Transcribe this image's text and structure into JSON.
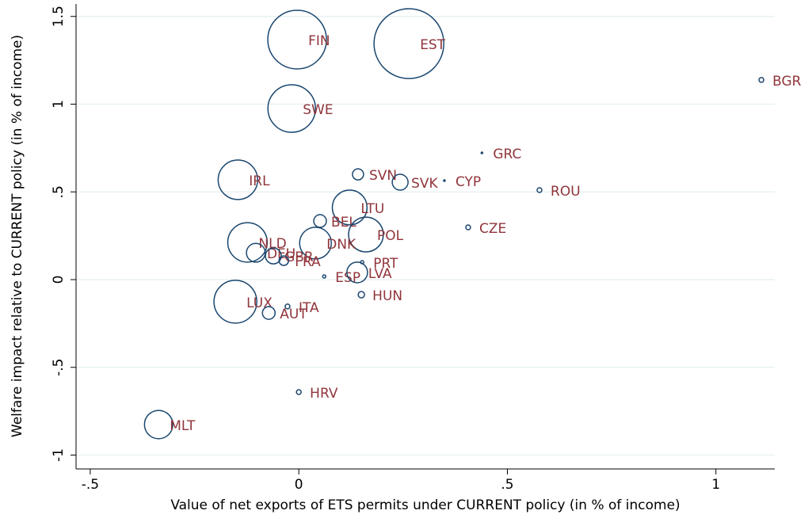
{
  "chart_data": {
    "type": "scatter",
    "x_label": "Value of net exports of ETS permits under CURRENT policy (in % of income)",
    "y_label": "Welfare impact relative to CURRENT policy (in % of income)",
    "series": [
      {
        "color": "#1a476f",
        "label_color": "#90353b",
        "labels": [
          "FIN",
          "EST",
          "SWE",
          "BGR",
          "GRC",
          "SVN",
          "SVK",
          "CYP",
          "ROU",
          "IRL",
          "LTU",
          "BEL",
          "POL",
          "CZE",
          "NLD",
          "DNK",
          "DEU",
          "GBR",
          "FRA",
          "PRT",
          "ESP",
          "LVA",
          "HUN",
          "LUX",
          "ITA",
          "AUT",
          "HRV",
          "MLT"
        ],
        "x": [
          -0.004,
          0.264,
          -0.017,
          1.109,
          0.439,
          0.142,
          0.243,
          0.349,
          0.577,
          -0.146,
          0.122,
          0.051,
          0.161,
          0.406,
          -0.123,
          0.04,
          -0.103,
          -0.061,
          -0.036,
          0.152,
          0.061,
          0.14,
          0.15,
          -0.152,
          -0.027,
          -0.072,
          0.0,
          -0.336
        ],
        "values": [
          1.368,
          1.345,
          0.975,
          1.138,
          0.722,
          0.6,
          0.555,
          0.564,
          0.51,
          0.569,
          0.411,
          0.334,
          0.257,
          0.298,
          0.212,
          0.208,
          0.153,
          0.135,
          0.108,
          0.099,
          0.018,
          0.041,
          -0.086,
          -0.126,
          -0.153,
          -0.19,
          -0.641,
          -0.826
        ],
        "sizes": [
          137,
          194,
          90,
          0.9,
          0.1,
          4.9,
          10,
          0.1,
          0.9,
          62,
          48,
          6.4,
          48,
          0.9,
          62,
          40,
          14,
          10,
          3.6,
          0.4,
          0.4,
          17,
          1.6,
          73,
          0.9,
          6.4,
          0.9,
          32
        ]
      }
    ],
    "xlim": [
      -0.534,
      1.141
    ],
    "ylim": [
      -1.079,
      1.571
    ],
    "xticks": [
      {
        "value": -0.5,
        "label": "-.5"
      },
      0,
      {
        "value": 0.5,
        "label": ".5"
      },
      1
    ],
    "yticks": [
      -1,
      {
        "value": -0.5,
        "label": "-.5"
      },
      0,
      {
        "value": 0.5,
        "label": ".5"
      },
      1,
      1.5
    ],
    "grid": true
  }
}
